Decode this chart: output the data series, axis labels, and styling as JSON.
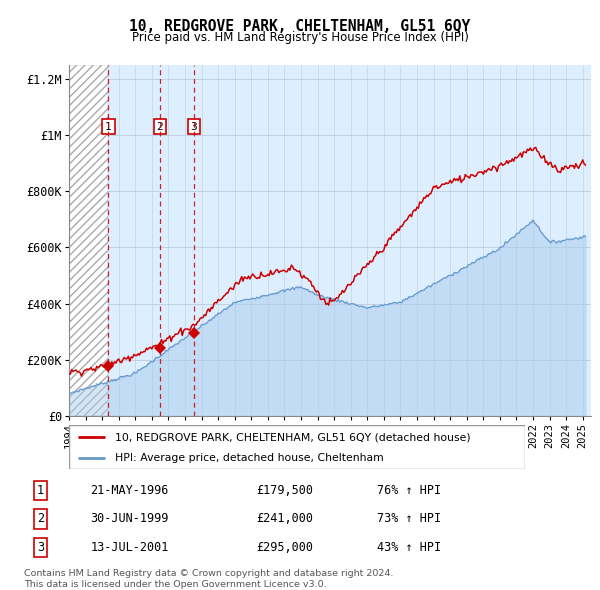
{
  "title": "10, REDGROVE PARK, CHELTENHAM, GL51 6QY",
  "subtitle": "Price paid vs. HM Land Registry's House Price Index (HPI)",
  "ylim": [
    0,
    1200000
  ],
  "yticks": [
    0,
    200000,
    400000,
    600000,
    800000,
    1000000,
    1200000
  ],
  "ytick_labels": [
    "£0",
    "£200K",
    "£400K",
    "£600K",
    "£800K",
    "£1M",
    "£1.2M"
  ],
  "sale_color": "#cc0000",
  "hpi_color": "#6699cc",
  "bg_color": "#ddeeff",
  "transactions": [
    {
      "label": "1",
      "date": "21-MAY-1996",
      "year": 1996.38,
      "price": 179500,
      "pct": "76% ↑ HPI"
    },
    {
      "label": "2",
      "date": "30-JUN-1999",
      "year": 1999.49,
      "price": 241000,
      "pct": "73% ↑ HPI"
    },
    {
      "label": "3",
      "date": "13-JUL-2001",
      "year": 2001.53,
      "price": 295000,
      "pct": "43% ↑ HPI"
    }
  ],
  "legend_entries": [
    "10, REDGROVE PARK, CHELTENHAM, GL51 6QY (detached house)",
    "HPI: Average price, detached house, Cheltenham"
  ],
  "footer": "Contains HM Land Registry data © Crown copyright and database right 2024.\nThis data is licensed under the Open Government Licence v3.0.",
  "xmin": 1994,
  "xmax": 2025.5
}
